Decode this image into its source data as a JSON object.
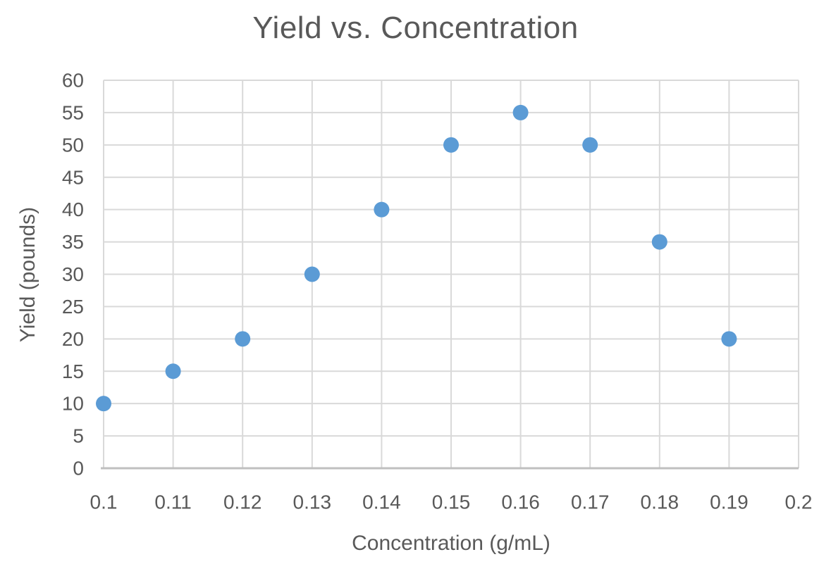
{
  "chart_data": {
    "type": "scatter",
    "title": "Yield vs. Concentration",
    "xlabel": "Concentration (g/mL)",
    "ylabel": "Yield (pounds)",
    "xlim": [
      0.1,
      0.2
    ],
    "ylim": [
      0,
      60
    ],
    "grid": true,
    "legend": false,
    "points": [
      {
        "x": 0.1,
        "y": 10
      },
      {
        "x": 0.11,
        "y": 15
      },
      {
        "x": 0.12,
        "y": 20
      },
      {
        "x": 0.13,
        "y": 30
      },
      {
        "x": 0.14,
        "y": 40
      },
      {
        "x": 0.15,
        "y": 50
      },
      {
        "x": 0.16,
        "y": 55
      },
      {
        "x": 0.17,
        "y": 50
      },
      {
        "x": 0.18,
        "y": 35
      },
      {
        "x": 0.19,
        "y": 20
      }
    ],
    "xticks": [
      {
        "value": 0.1,
        "label": "0.1"
      },
      {
        "value": 0.11,
        "label": "0.11"
      },
      {
        "value": 0.12,
        "label": "0.12"
      },
      {
        "value": 0.13,
        "label": "0.13"
      },
      {
        "value": 0.14,
        "label": "0.14"
      },
      {
        "value": 0.15,
        "label": "0.15"
      },
      {
        "value": 0.16,
        "label": "0.16"
      },
      {
        "value": 0.17,
        "label": "0.17"
      },
      {
        "value": 0.18,
        "label": "0.18"
      },
      {
        "value": 0.19,
        "label": "0.19"
      },
      {
        "value": 0.2,
        "label": "0.2"
      }
    ],
    "yticks": [
      {
        "value": 0,
        "label": "0"
      },
      {
        "value": 5,
        "label": "5"
      },
      {
        "value": 10,
        "label": "10"
      },
      {
        "value": 15,
        "label": "15"
      },
      {
        "value": 20,
        "label": "20"
      },
      {
        "value": 25,
        "label": "25"
      },
      {
        "value": 30,
        "label": "30"
      },
      {
        "value": 35,
        "label": "35"
      },
      {
        "value": 40,
        "label": "40"
      },
      {
        "value": 45,
        "label": "45"
      },
      {
        "value": 50,
        "label": "50"
      },
      {
        "value": 55,
        "label": "55"
      },
      {
        "value": 60,
        "label": "60"
      }
    ],
    "marker": {
      "shape": "circle",
      "radius": 11,
      "color": "#5B9BD5"
    },
    "colors": {
      "marker": "#5B9BD5",
      "gridline": "#D9D9D9",
      "axis_line": "#BFBFBF",
      "text": "#595959",
      "background": "#FFFFFF"
    }
  }
}
